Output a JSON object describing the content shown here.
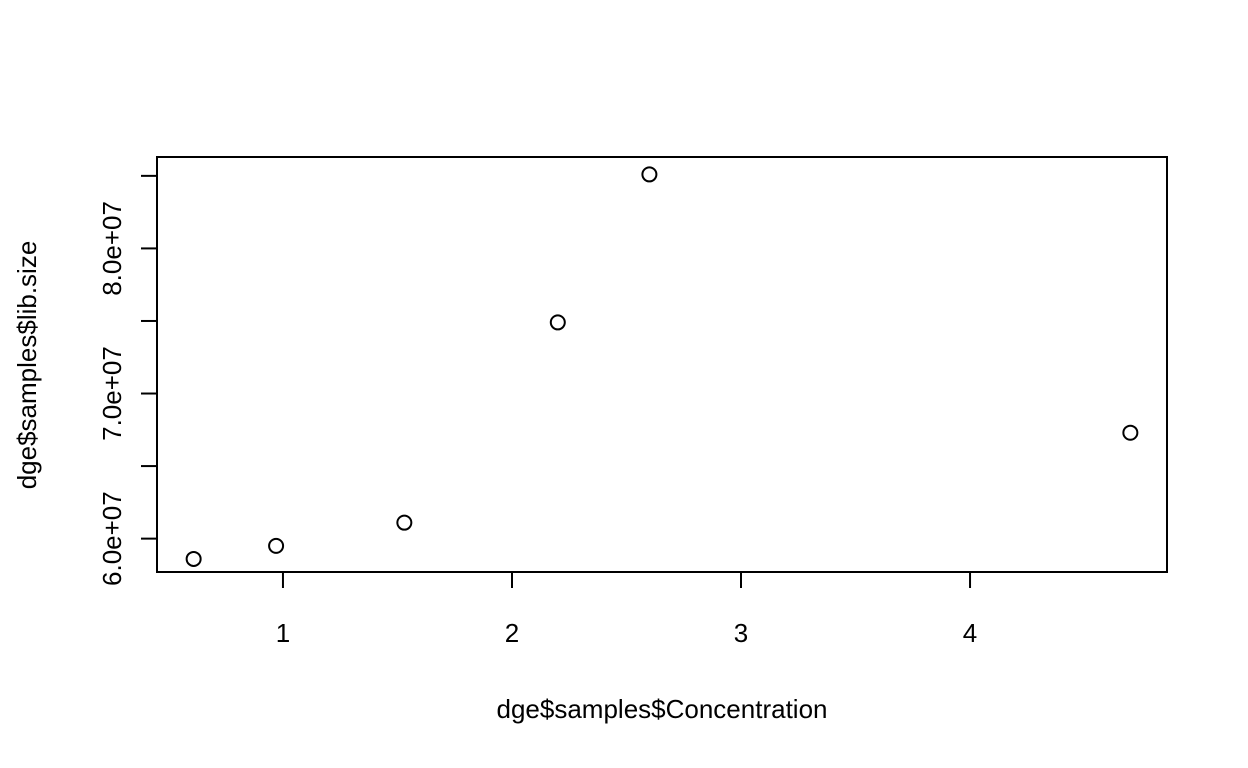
{
  "chart_data": {
    "type": "scatter",
    "title": "",
    "xlabel": "dge$samples$Concentration",
    "ylabel": "dge$samples$lib.size",
    "xlim": [
      0.45,
      4.86
    ],
    "ylim": [
      57700000,
      86300000
    ],
    "x_ticks": [
      {
        "value": 1,
        "label": "1"
      },
      {
        "value": 2,
        "label": "2"
      },
      {
        "value": 3,
        "label": "3"
      },
      {
        "value": 4,
        "label": "4"
      }
    ],
    "y_ticks": [
      {
        "value": 60000000,
        "label": "6.0e+07"
      },
      {
        "value": 65000000,
        "label": ""
      },
      {
        "value": 70000000,
        "label": "7.0e+07"
      },
      {
        "value": 75000000,
        "label": ""
      },
      {
        "value": 80000000,
        "label": "8.0e+07"
      },
      {
        "value": 85000000,
        "label": ""
      }
    ],
    "grid": false,
    "marker": "open-circle",
    "series": [
      {
        "points": [
          {
            "x": 0.61,
            "y": 58600000
          },
          {
            "x": 0.97,
            "y": 59500000
          },
          {
            "x": 1.53,
            "y": 61100000
          },
          {
            "x": 2.2,
            "y": 74900000
          },
          {
            "x": 2.6,
            "y": 85100000
          },
          {
            "x": 4.7,
            "y": 67300000
          }
        ]
      }
    ]
  }
}
